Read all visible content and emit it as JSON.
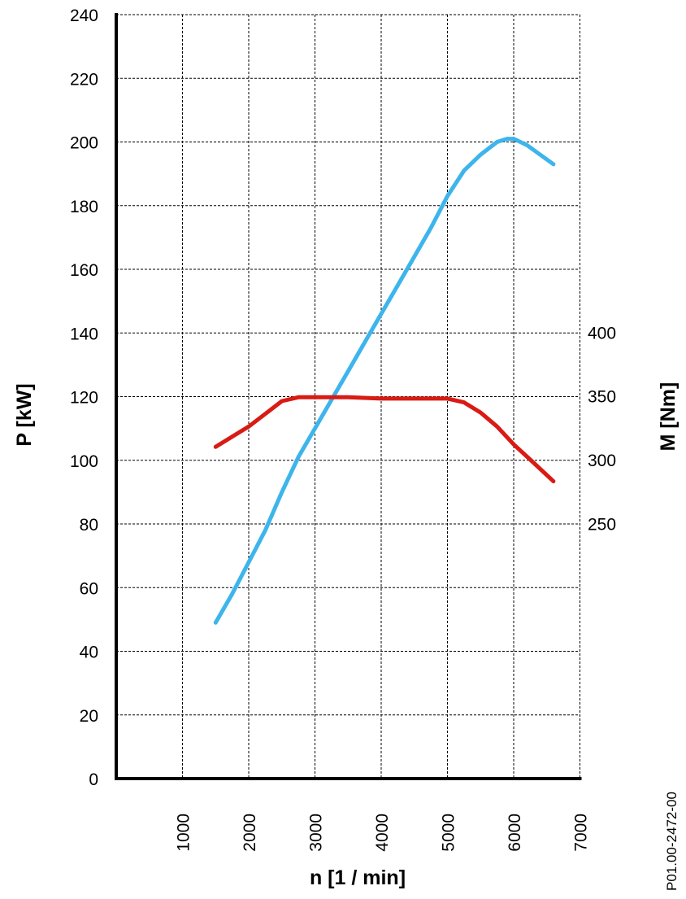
{
  "chart_data": {
    "type": "line",
    "title": "",
    "xlabel": "n [1 / min]",
    "ylabel_left": "P [kW]",
    "ylabel_right": "M [Nm]",
    "reference_code": "P01.00-2472-00",
    "xlim": [
      0,
      7000
    ],
    "ylim_left": [
      0,
      240
    ],
    "ylim_right": [
      173,
      431
    ],
    "grid": true,
    "x_ticks": [
      1000,
      2000,
      3000,
      4000,
      5000,
      6000,
      7000
    ],
    "y_left_ticks": [
      0,
      20,
      40,
      60,
      80,
      100,
      120,
      140,
      160,
      180,
      200,
      220,
      240
    ],
    "y_right_ticks": [
      250,
      300,
      350,
      400
    ],
    "series": [
      {
        "axis": "left",
        "color": "#3db5ec",
        "x": [
          1500,
          1750,
          2000,
          2250,
          2500,
          2750,
          3000,
          3250,
          3500,
          3750,
          4000,
          4250,
          4500,
          4750,
          5000,
          5250,
          5500,
          5750,
          5900,
          6000,
          6200,
          6400,
          6600
        ],
        "y": [
          49,
          58,
          68,
          78,
          90,
          101,
          110,
          119,
          128,
          137,
          146,
          155,
          164,
          173,
          183,
          191,
          196,
          200,
          201,
          201,
          199,
          196,
          193
        ]
      },
      {
        "axis": "right",
        "color": "#d81b13",
        "x": [
          1500,
          1750,
          2000,
          2250,
          2500,
          2750,
          3000,
          3500,
          4000,
          4500,
          5000,
          5250,
          5500,
          5750,
          6000,
          6250,
          6600
        ],
        "y": [
          310,
          318,
          326,
          336,
          346,
          349,
          349,
          349,
          348,
          348,
          348,
          345,
          337,
          326,
          312,
          300,
          283
        ]
      }
    ]
  }
}
